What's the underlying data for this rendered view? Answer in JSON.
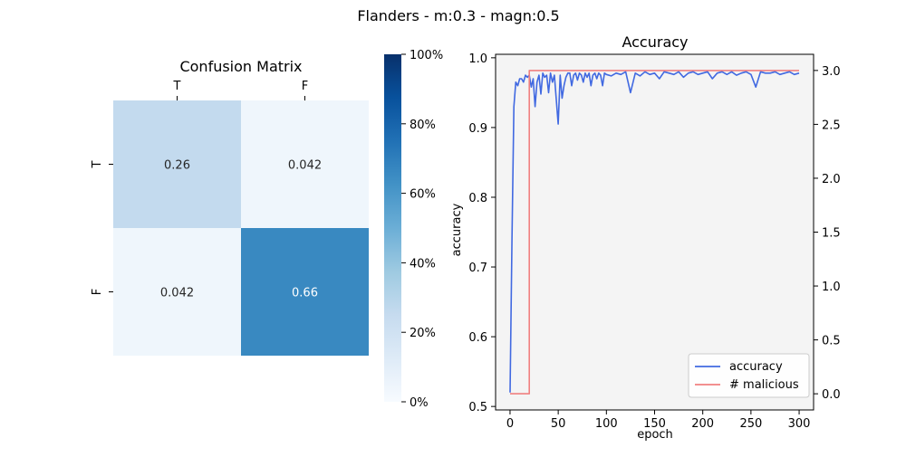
{
  "figure": {
    "suptitle": "Flanders - m:0.3 - magn:0.5"
  },
  "chart_data": [
    {
      "type": "heatmap",
      "title": "Confusion Matrix",
      "row_labels": [
        "T",
        "F"
      ],
      "col_labels": [
        "T",
        "F"
      ],
      "cells": [
        {
          "label": "0.26",
          "value": 0.26
        },
        {
          "label": "0.042",
          "value": 0.042
        },
        {
          "label": "0.042",
          "value": 0.042
        },
        {
          "label": "0.66",
          "value": 0.66
        }
      ],
      "colorbar": {
        "range": [
          0,
          1
        ],
        "ticks": [
          {
            "value": 0.0,
            "label": "0%"
          },
          {
            "value": 0.2,
            "label": "20%"
          },
          {
            "value": 0.4,
            "label": "40%"
          },
          {
            "value": 0.6,
            "label": "60%"
          },
          {
            "value": 0.8,
            "label": "80%"
          },
          {
            "value": 1.0,
            "label": "100%"
          }
        ],
        "colormap": "Blues"
      }
    },
    {
      "type": "line",
      "title": "Accuracy",
      "xlabel": "epoch",
      "ylabel": "accuracy",
      "xlim": [
        -15,
        315
      ],
      "ylim": [
        0.495,
        1.005
      ],
      "y2lim": [
        -0.15,
        3.15
      ],
      "x_ticks": [
        {
          "value": 0,
          "label": "0"
        },
        {
          "value": 50,
          "label": "50"
        },
        {
          "value": 100,
          "label": "100"
        },
        {
          "value": 150,
          "label": "150"
        },
        {
          "value": 200,
          "label": "200"
        },
        {
          "value": 250,
          "label": "250"
        },
        {
          "value": 300,
          "label": "300"
        }
      ],
      "y_ticks": [
        {
          "value": 0.5,
          "label": "0.5"
        },
        {
          "value": 0.6,
          "label": "0.6"
        },
        {
          "value": 0.7,
          "label": "0.7"
        },
        {
          "value": 0.8,
          "label": "0.8"
        },
        {
          "value": 0.9,
          "label": "0.9"
        },
        {
          "value": 1.0,
          "label": "1.0"
        }
      ],
      "y2_ticks": [
        {
          "value": 0.0,
          "label": "0.0"
        },
        {
          "value": 0.5,
          "label": "0.5"
        },
        {
          "value": 1.0,
          "label": "1.0"
        },
        {
          "value": 1.5,
          "label": "1.5"
        },
        {
          "value": 2.0,
          "label": "2.0"
        },
        {
          "value": 2.5,
          "label": "2.5"
        },
        {
          "value": 3.0,
          "label": "3.0"
        }
      ],
      "legend": {
        "position": "lower-right"
      },
      "series": [
        {
          "name": "accuracy",
          "color": "#4169e1",
          "axis": "left",
          "x": [
            0,
            2,
            4,
            6,
            8,
            10,
            12,
            14,
            16,
            18,
            20,
            22,
            24,
            26,
            28,
            30,
            32,
            34,
            36,
            38,
            40,
            42,
            44,
            46,
            48,
            50,
            52,
            54,
            56,
            58,
            60,
            62,
            64,
            66,
            68,
            70,
            72,
            74,
            76,
            78,
            80,
            82,
            84,
            86,
            88,
            90,
            92,
            94,
            96,
            98,
            100,
            105,
            110,
            115,
            120,
            125,
            130,
            135,
            140,
            145,
            150,
            155,
            160,
            165,
            170,
            175,
            180,
            185,
            190,
            195,
            200,
            205,
            210,
            215,
            220,
            225,
            230,
            235,
            240,
            245,
            250,
            255,
            260,
            265,
            270,
            275,
            280,
            285,
            290,
            295,
            300
          ],
          "y": [
            0.52,
            0.74,
            0.93,
            0.965,
            0.96,
            0.97,
            0.97,
            0.965,
            0.975,
            0.972,
            0.975,
            0.958,
            0.97,
            0.93,
            0.965,
            0.975,
            0.948,
            0.978,
            0.972,
            0.975,
            0.95,
            0.978,
            0.965,
            0.975,
            0.94,
            0.905,
            0.975,
            0.942,
            0.96,
            0.972,
            0.978,
            0.978,
            0.96,
            0.975,
            0.978,
            0.968,
            0.978,
            0.975,
            0.965,
            0.978,
            0.972,
            0.978,
            0.96,
            0.975,
            0.978,
            0.97,
            0.978,
            0.975,
            0.96,
            0.978,
            0.976,
            0.974,
            0.978,
            0.976,
            0.98,
            0.95,
            0.978,
            0.974,
            0.98,
            0.976,
            0.978,
            0.97,
            0.98,
            0.978,
            0.976,
            0.98,
            0.972,
            0.978,
            0.98,
            0.976,
            0.978,
            0.98,
            0.97,
            0.978,
            0.98,
            0.976,
            0.98,
            0.975,
            0.978,
            0.98,
            0.976,
            0.958,
            0.98,
            0.978,
            0.978,
            0.98,
            0.976,
            0.978,
            0.98,
            0.976,
            0.978
          ]
        },
        {
          "name": "# malicious",
          "color": "#f08080",
          "axis": "right",
          "x": [
            0,
            20,
            20,
            300
          ],
          "y": [
            0,
            0,
            3,
            3
          ]
        }
      ]
    }
  ]
}
